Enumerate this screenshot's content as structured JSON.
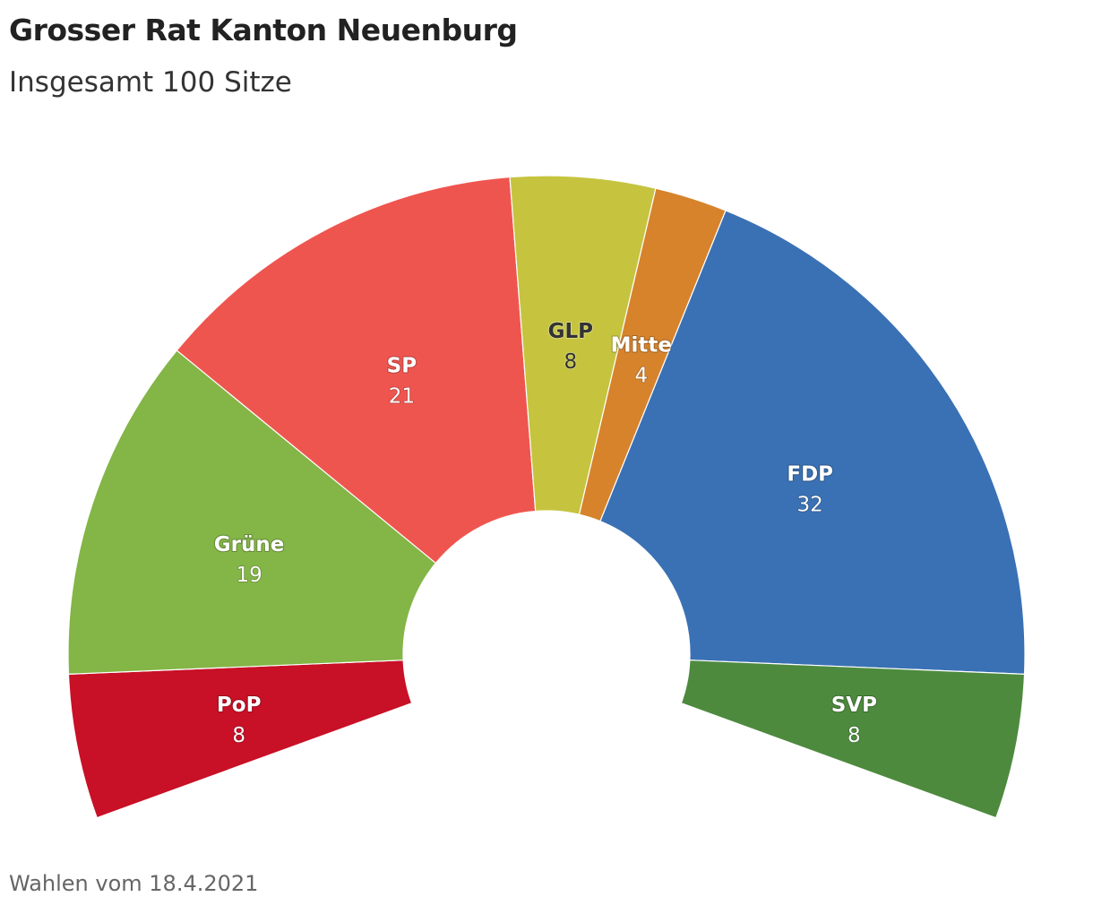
{
  "header": {
    "title": "Grosser Rat Kanton Neuenburg",
    "subtitle": "Insgesamt 100 Sitze"
  },
  "footer": {
    "note": "Wahlen vom 18.4.2021"
  },
  "chart_data": {
    "type": "pie",
    "variant": "semicircle-parliament",
    "title": "Grosser Rat Kanton Neuenburg",
    "subtitle": "Insgesamt 100 Sitze",
    "total": 100,
    "arc_degrees": 220,
    "order": "left-to-right",
    "categories": [
      "PoP",
      "Grüne",
      "SP",
      "GLP",
      "Mitte",
      "FDP",
      "SVP"
    ],
    "values": [
      8,
      19,
      21,
      8,
      4,
      32,
      8
    ],
    "colors": [
      "#c81026",
      "#84b547",
      "#ef554f",
      "#c6c43f",
      "#d6832c",
      "#3a71b4",
      "#4d8a3e"
    ],
    "label_colors": [
      "#ffffff",
      "#ffffff",
      "#ffffff",
      "#333333",
      "#ffffff",
      "#ffffff",
      "#ffffff"
    ]
  }
}
